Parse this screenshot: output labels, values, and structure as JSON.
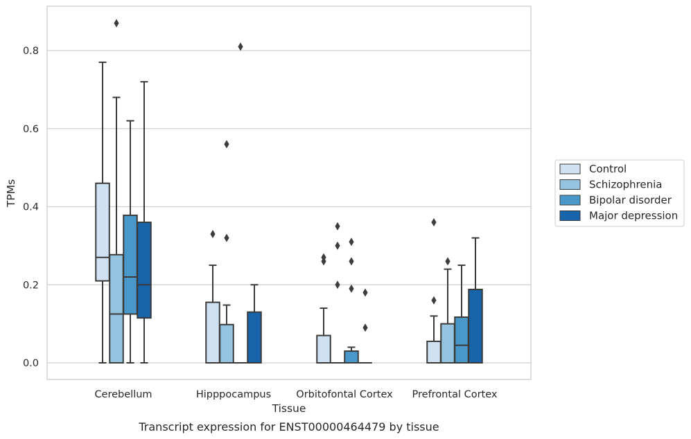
{
  "caption": "Transcript expression for ENST00000464479 by tissue",
  "colors": {
    "Control": "#d0e1f2",
    "Schizophrenia": "#94c4df",
    "Bipolar disorder": "#4a98c9",
    "Major depression": "#1764ab",
    "line": "#3a3a3a",
    "grid": "#cfcfcf",
    "frame": "#cccccc"
  },
  "chart_data": {
    "type": "box",
    "title": "",
    "xlabel": "Tissue",
    "ylabel": "TPMs",
    "ylim": [
      -0.04,
      0.92
    ],
    "yticks": [
      0.0,
      0.2,
      0.4,
      0.6,
      0.8
    ],
    "ytick_labels": [
      "0.0",
      "0.2",
      "0.4",
      "0.6",
      "0.8"
    ],
    "grid": "horizontal",
    "legend_position": "right",
    "categories": [
      "Cerebellum",
      "Hipppocampus",
      "Orbitofontal Cortex",
      "Prefrontal Cortex"
    ],
    "series": [
      {
        "name": "Control",
        "boxes": [
          {
            "whisker_low": 0.0,
            "q1": 0.21,
            "median": 0.27,
            "q3": 0.46,
            "whisker_high": 0.77,
            "outliers": []
          },
          {
            "whisker_low": 0.0,
            "q1": 0.0,
            "median": 0.0,
            "q3": 0.155,
            "whisker_high": 0.25,
            "outliers": [
              0.33
            ]
          },
          {
            "whisker_low": 0.0,
            "q1": 0.0,
            "median": 0.0,
            "q3": 0.07,
            "whisker_high": 0.14,
            "outliers": [
              0.26,
              0.27
            ]
          },
          {
            "whisker_low": 0.0,
            "q1": 0.0,
            "median": 0.0,
            "q3": 0.055,
            "whisker_high": 0.12,
            "outliers": [
              0.16,
              0.36
            ]
          }
        ]
      },
      {
        "name": "Schizophrenia",
        "boxes": [
          {
            "whisker_low": 0.0,
            "q1": 0.0,
            "median": 0.125,
            "q3": 0.277,
            "whisker_high": 0.68,
            "outliers": [
              0.87
            ]
          },
          {
            "whisker_low": 0.0,
            "q1": 0.0,
            "median": 0.0,
            "q3": 0.098,
            "whisker_high": 0.148,
            "outliers": [
              0.32,
              0.56
            ]
          },
          {
            "whisker_low": 0.0,
            "q1": 0.0,
            "median": 0.0,
            "q3": 0.0,
            "whisker_high": 0.0,
            "outliers": [
              0.2,
              0.3,
              0.35
            ]
          },
          {
            "whisker_low": 0.0,
            "q1": 0.0,
            "median": 0.0,
            "q3": 0.1,
            "whisker_high": 0.24,
            "outliers": [
              0.26
            ]
          }
        ]
      },
      {
        "name": "Bipolar disorder",
        "boxes": [
          {
            "whisker_low": 0.0,
            "q1": 0.125,
            "median": 0.22,
            "q3": 0.378,
            "whisker_high": 0.62,
            "outliers": []
          },
          {
            "whisker_low": 0.0,
            "q1": 0.0,
            "median": 0.0,
            "q3": 0.0,
            "whisker_high": 0.0,
            "outliers": [
              0.81
            ]
          },
          {
            "whisker_low": 0.0,
            "q1": 0.0,
            "median": 0.0,
            "q3": 0.03,
            "whisker_high": 0.04,
            "outliers": [
              0.19,
              0.26,
              0.31
            ]
          },
          {
            "whisker_low": 0.0,
            "q1": 0.0,
            "median": 0.045,
            "q3": 0.117,
            "whisker_high": 0.25,
            "outliers": []
          }
        ]
      },
      {
        "name": "Major depression",
        "boxes": [
          {
            "whisker_low": 0.0,
            "q1": 0.115,
            "median": 0.2,
            "q3": 0.36,
            "whisker_high": 0.72,
            "outliers": []
          },
          {
            "whisker_low": 0.0,
            "q1": 0.0,
            "median": 0.0,
            "q3": 0.13,
            "whisker_high": 0.2,
            "outliers": []
          },
          {
            "whisker_low": 0.0,
            "q1": 0.0,
            "median": 0.0,
            "q3": 0.0,
            "whisker_high": 0.0,
            "outliers": [
              0.09,
              0.18
            ]
          },
          {
            "whisker_low": 0.0,
            "q1": 0.0,
            "median": 0.0,
            "q3": 0.188,
            "whisker_high": 0.32,
            "outliers": []
          }
        ]
      }
    ]
  }
}
